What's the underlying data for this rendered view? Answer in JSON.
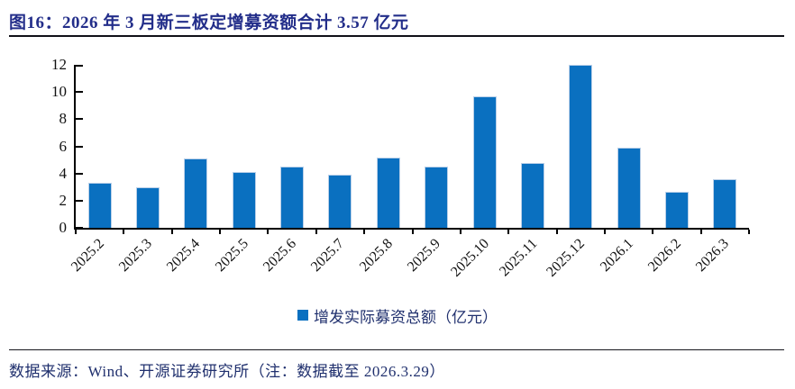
{
  "header": {
    "title": "图16：2026 年 3 月新三板定增募资额合计 3.57 亿元"
  },
  "chart_data": {
    "type": "bar",
    "title": "2026 年 3 月新三板定增募资额合计 3.57 亿元",
    "categories": [
      "2025.2",
      "2025.3",
      "2025.4",
      "2025.5",
      "2025.6",
      "2025.7",
      "2025.8",
      "2025.9",
      "2025.10",
      "2025.11",
      "2025.12",
      "2026.1",
      "2026.2",
      "2026.3"
    ],
    "values": [
      3.3,
      3.0,
      5.1,
      4.1,
      4.5,
      3.9,
      5.2,
      4.5,
      9.7,
      4.8,
      12.0,
      5.9,
      2.65,
      3.57
    ],
    "series_name": "增发实际募资总额（亿元）",
    "xlabel": "",
    "ylabel": "",
    "ylim": [
      0,
      12
    ],
    "yticks": [
      0,
      2,
      4,
      6,
      8,
      10,
      12
    ],
    "grid": false,
    "legend_position": "bottom",
    "bar_color": "#0a70c0",
    "bar_border_color": "#b9cfe8",
    "axis_color": "#000000"
  },
  "legend": {
    "label": "增发实际募资总额（亿元）",
    "marker_color": "#0a70c0"
  },
  "footer": {
    "text": "数据来源：Wind、开源证券研究所（注：数据截至 2026.3.29）"
  },
  "colors": {
    "title_navy": "#232e8a",
    "text_navy": "#20306e",
    "bar_blue": "#0a70c0",
    "axis_black": "#000000"
  }
}
